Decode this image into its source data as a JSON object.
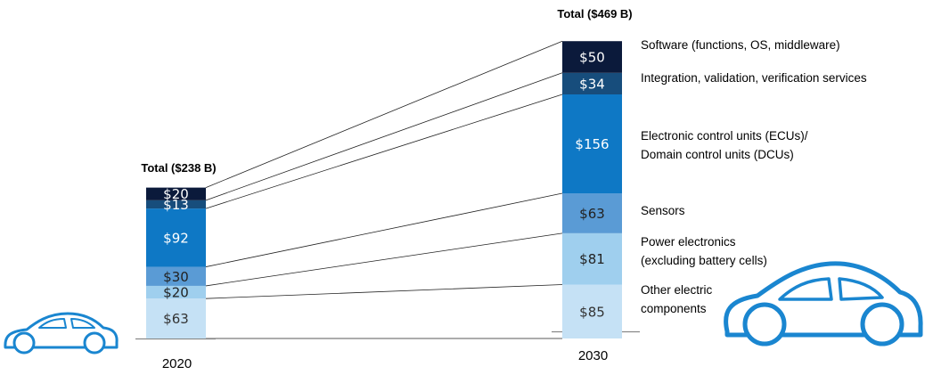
{
  "chart_data": {
    "type": "bar",
    "stacked": true,
    "categories": [
      "2020",
      "2030"
    ],
    "totals": [
      "Total ($238 B)",
      "Total ($469 B)"
    ],
    "series": [
      {
        "name": "Other electric components",
        "legend": [
          "Other electric",
          "components"
        ],
        "values": [
          63,
          85
        ],
        "labels": [
          "$63",
          "$85"
        ],
        "color": "#c5e1f5",
        "text_color": "#333333"
      },
      {
        "name": "Power electronics (excluding battery cells)",
        "legend": [
          "Power electronics",
          "(excluding battery cells)"
        ],
        "values": [
          20,
          81
        ],
        "labels": [
          "$20",
          "$81"
        ],
        "color": "#9fcfee",
        "text_color": "#222222"
      },
      {
        "name": "Sensors",
        "legend": [
          "Sensors"
        ],
        "values": [
          30,
          63
        ],
        "labels": [
          "$30",
          "$63"
        ],
        "color": "#5a9bd5",
        "text_color": "#222222"
      },
      {
        "name": "Electronic control units (ECUs)/ Domain control units (DCUs)",
        "legend": [
          "Electronic control units (ECUs)/",
          "Domain control units (DCUs)"
        ],
        "values": [
          92,
          156
        ],
        "labels": [
          "$92",
          "$156"
        ],
        "color": "#0e78c5",
        "text_color": "#ffffff"
      },
      {
        "name": "Integration, validation, verification services",
        "legend": [
          "Integration, validation, verification services"
        ],
        "values": [
          13,
          34
        ],
        "labels": [
          "$13",
          "$34"
        ],
        "color": "#174d7c",
        "text_color": "#ffffff"
      },
      {
        "name": "Software (functions, OS, middleware)",
        "legend": [
          "Software (functions, OS, middleware)"
        ],
        "values": [
          20,
          50
        ],
        "labels": [
          "$20",
          "$50"
        ],
        "color": "#0b1a3b",
        "text_color": "#ffffff"
      }
    ],
    "icons": [
      "car-icon-small",
      "car-icon-large"
    ],
    "accent_color": "#1a86d0"
  }
}
